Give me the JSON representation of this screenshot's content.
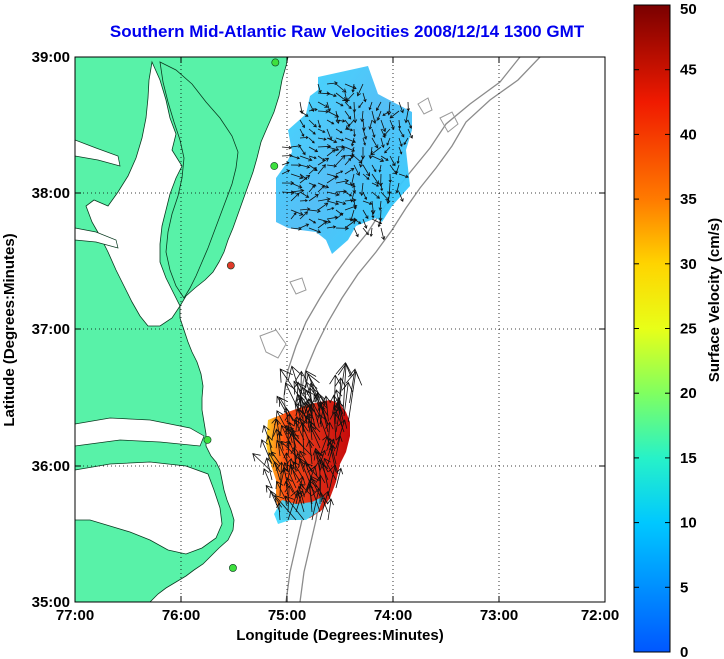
{
  "title": "Southern Mid-Atlantic Raw Velocities 2008/12/14 1300 GMT",
  "xlabel": "Longitude (Degrees:Minutes)",
  "ylabel": "Latitude (Degrees:Minutes)",
  "x_ticks": [
    "77:00",
    "76:00",
    "75:00",
    "74:00",
    "73:00",
    "72:00"
  ],
  "y_ticks": [
    "39:00",
    "38:00",
    "37:00",
    "36:00",
    "35:00"
  ],
  "colorbar": {
    "label": "Surface Velocity (cm/s)",
    "ticks": [
      "50",
      "45",
      "40",
      "35",
      "30",
      "25",
      "20",
      "15",
      "10",
      "5",
      "0"
    ],
    "range": [
      0,
      50
    ]
  },
  "colors": {
    "land": "#58f2a8",
    "water": "#ffffff",
    "title": "#0000ee",
    "station_normal": "#3ee03e",
    "station_alert": "#e03a2a"
  },
  "chart_data": {
    "type": "map",
    "lon_range": [
      -77,
      -72
    ],
    "lat_range": [
      35,
      39
    ],
    "grid": "dotted",
    "stations": [
      {
        "lon": -75.11,
        "lat": 38.96,
        "status": "normal"
      },
      {
        "lon": -75.12,
        "lat": 38.2,
        "status": "normal"
      },
      {
        "lon": -75.53,
        "lat": 37.47,
        "status": "alert"
      },
      {
        "lon": -75.75,
        "lat": 36.19,
        "status": "normal"
      },
      {
        "lon": -75.51,
        "lat": 35.25,
        "status": "normal"
      }
    ],
    "north_field": {
      "lon_range": [
        -75.13,
        -74.13
      ],
      "lat_range": [
        37.73,
        38.94
      ],
      "speed_range": [
        5,
        12
      ]
    },
    "south_field": {
      "lon_range": [
        -75.23,
        -74.39
      ],
      "lat_range": [
        35.55,
        36.32
      ],
      "speed_range": [
        15,
        50
      ]
    }
  }
}
